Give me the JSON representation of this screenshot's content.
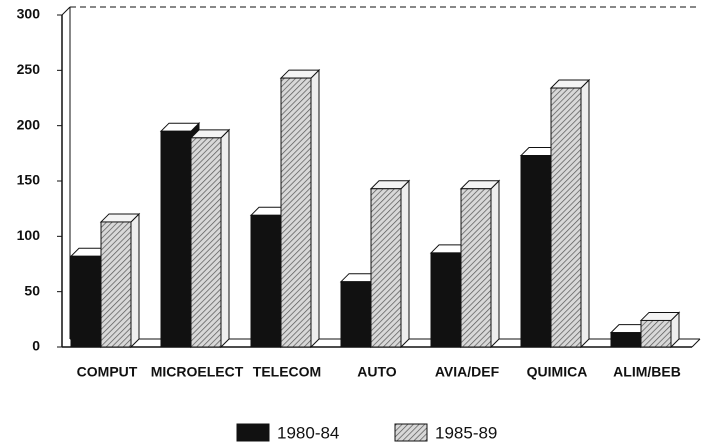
{
  "chart_data": {
    "type": "bar3d",
    "categories": [
      "COMPUT",
      "MICROELECT",
      "TELECOM",
      "AUTO",
      "AVIA/DEF",
      "QUIMICA",
      "ALIM/BEB"
    ],
    "series": [
      {
        "name": "1980-84",
        "color": "#111111",
        "hatch": false,
        "values": [
          82,
          195,
          119,
          59,
          85,
          173,
          13
        ]
      },
      {
        "name": "1985-89",
        "color": "#9a9a9a",
        "hatch": true,
        "values": [
          113,
          189,
          243,
          143,
          143,
          234,
          24
        ]
      }
    ],
    "ylim": [
      0,
      300
    ],
    "yticks": [
      0,
      50,
      100,
      150,
      200,
      250,
      300
    ],
    "grid": false,
    "legend": "bottom"
  }
}
